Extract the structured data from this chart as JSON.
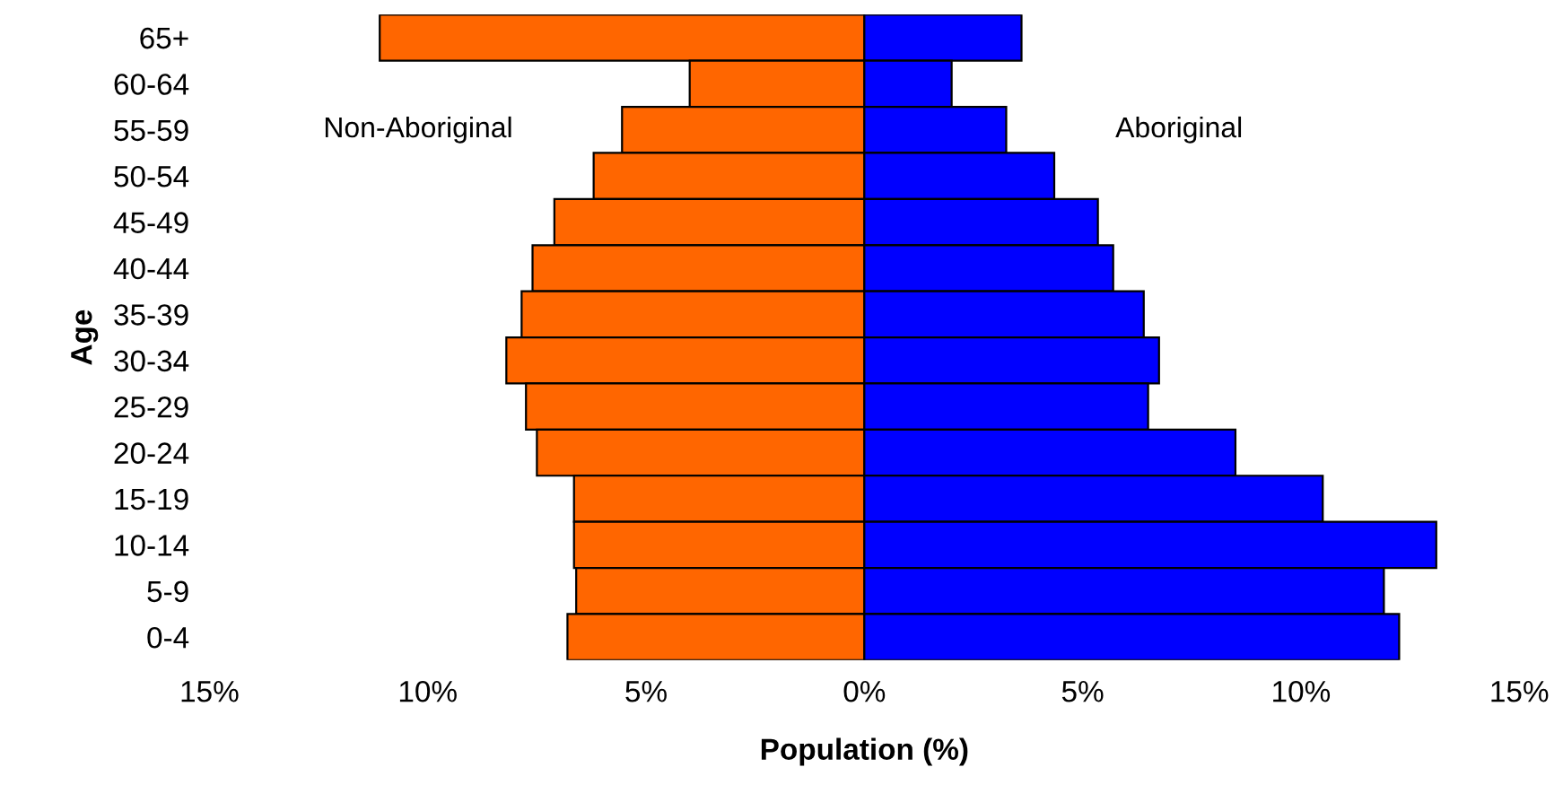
{
  "chart_data": {
    "type": "bar",
    "orientation": "horizontal",
    "stacked": true,
    "xlabel": "Population (%)",
    "ylabel": "Age",
    "categories": [
      "65+",
      "60-64",
      "55-59",
      "50-54",
      "45-49",
      "40-44",
      "35-39",
      "30-34",
      "25-29",
      "20-24",
      "15-19",
      "10-14",
      "5-9",
      "0-4"
    ],
    "series": [
      {
        "name": "Non-Aboriginal",
        "color": "#ff6600",
        "values": [
          -11.1,
          -4.0,
          -5.55,
          -6.2,
          -7.1,
          -7.6,
          -7.85,
          -8.2,
          -7.75,
          -7.5,
          -6.65,
          -6.65,
          -6.6,
          -6.8
        ]
      },
      {
        "name": "Aboriginal",
        "color": "#0000ff",
        "values": [
          3.6,
          2.0,
          3.25,
          4.35,
          5.35,
          5.7,
          6.4,
          6.75,
          6.5,
          8.5,
          10.5,
          13.1,
          11.9,
          12.25
        ]
      }
    ],
    "xlim": [
      -15,
      15
    ],
    "xticks": [
      {
        "value": -15,
        "label": "15%"
      },
      {
        "value": -10,
        "label": "10%"
      },
      {
        "value": -5,
        "label": "5%"
      },
      {
        "value": 0,
        "label": "0%"
      },
      {
        "value": 5,
        "label": "5%"
      },
      {
        "value": 10,
        "label": "10%"
      },
      {
        "value": 15,
        "label": "15%"
      }
    ],
    "grid": false,
    "legend": false
  }
}
